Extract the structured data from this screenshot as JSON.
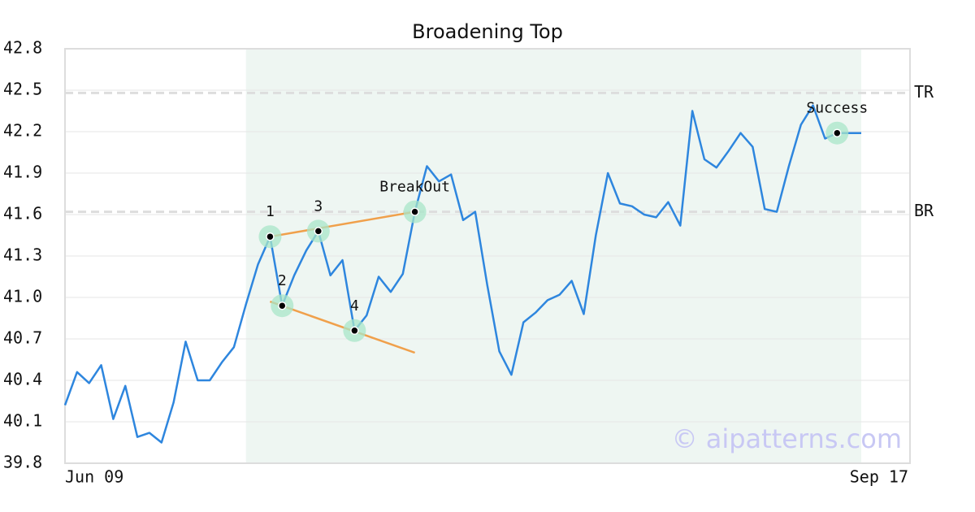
{
  "chart_data": {
    "type": "line",
    "title": "Broadening Top",
    "categories": [
      "Jun 09",
      null,
      null,
      null,
      null,
      null,
      null,
      null,
      null,
      null,
      null,
      null,
      null,
      null,
      null,
      null,
      null,
      null,
      null,
      null,
      null,
      null,
      null,
      null,
      null,
      null,
      null,
      null,
      null,
      null,
      null,
      null,
      null,
      null,
      null,
      null,
      null,
      null,
      null,
      null,
      null,
      null,
      null,
      null,
      null,
      null,
      null,
      null,
      null,
      null,
      null,
      null,
      null,
      null,
      null,
      null,
      null,
      null,
      null,
      null,
      null,
      null,
      null,
      null,
      null,
      null,
      "Sep 17"
    ],
    "series": [
      {
        "color": "#2e86de",
        "values": [
          40.22,
          40.46,
          40.38,
          40.51,
          40.12,
          40.36,
          39.99,
          40.02,
          39.95,
          40.24,
          40.68,
          40.4,
          40.4,
          40.53,
          40.64,
          40.95,
          41.24,
          41.44,
          40.94,
          41.16,
          41.34,
          41.48,
          41.16,
          41.27,
          40.76,
          40.87,
          41.15,
          41.04,
          41.17,
          41.62,
          41.95,
          41.84,
          41.89,
          41.56,
          41.62,
          41.09,
          40.61,
          40.44,
          40.82,
          40.89,
          40.98,
          41.02,
          41.12,
          40.88,
          41.45,
          41.9,
          41.68,
          41.66,
          41.6,
          41.58,
          41.69,
          41.52,
          42.35,
          42.0,
          41.94,
          42.06,
          42.19,
          42.09,
          41.64,
          41.62,
          41.95,
          42.25,
          42.39,
          42.15,
          42.19,
          42.19,
          42.19
        ]
      }
    ],
    "ylim": [
      39.8,
      42.8
    ],
    "yticks": [
      39.8,
      40.1,
      40.4,
      40.7,
      {
        "value": 41,
        "label": "41.0"
      },
      41.3,
      41.6,
      41.9,
      42.2,
      42.5,
      42.8
    ],
    "grid": true,
    "highlight_range": [
      15,
      66
    ],
    "levels": [
      {
        "name": "TR",
        "value": 42.48
      },
      {
        "name": "BR",
        "value": 41.62
      }
    ],
    "trend_lines": [
      {
        "color": "#f0a04b",
        "points": [
          [
            17,
            41.44
          ],
          [
            29,
            41.62
          ]
        ]
      },
      {
        "color": "#f0a04b",
        "points": [
          [
            17,
            40.97
          ],
          [
            29,
            40.6
          ]
        ]
      }
    ],
    "points": [
      {
        "label": "1",
        "index": 17,
        "value": 41.44
      },
      {
        "label": "2",
        "index": 18,
        "value": 40.94
      },
      {
        "label": "3",
        "index": 21,
        "value": 41.48
      },
      {
        "label": "4",
        "index": 24,
        "value": 40.76
      },
      {
        "label": "BreakOut",
        "index": 29,
        "value": 41.62
      },
      {
        "label": "Success",
        "index": 64,
        "value": 42.19
      }
    ],
    "watermark": "© aipatterns.com"
  }
}
